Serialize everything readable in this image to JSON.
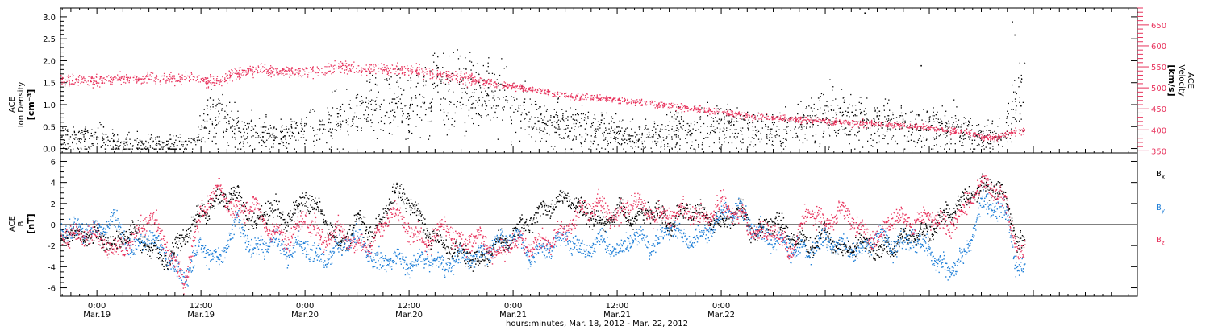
{
  "chart_data": [
    {
      "type": "scatter",
      "panel": "top",
      "ylabel_left": [
        "ACE",
        "Ion Density"
      ],
      "ylabel_left_unit": "[cm⁻³]",
      "ylabel_right": [
        "ACE",
        "Velocity"
      ],
      "ylabel_right_unit": "[km/s]",
      "ylim_left": [
        -0.1,
        3.2
      ],
      "ylim_right": [
        345,
        690
      ],
      "yticks_left": [
        "0.0",
        "0.5",
        "1.0",
        "1.5",
        "2.0",
        "2.5",
        "3.0"
      ],
      "yticks_right": [
        "350",
        "400",
        "450",
        "500",
        "550",
        "600",
        "650"
      ],
      "series": [
        {
          "axis": "left",
          "color": "#000000",
          "keypoints": [
            [
              0.0,
              0.25
            ],
            [
              3.0,
              0.1
            ],
            [
              8.0,
              0.08
            ],
            [
              11.0,
              0.1
            ],
            [
              13.0,
              0.8
            ],
            [
              17.0,
              0.4
            ],
            [
              20.0,
              0.3
            ],
            [
              23.0,
              0.4
            ],
            [
              26.0,
              0.5
            ],
            [
              29.0,
              0.8
            ],
            [
              33.0,
              0.95
            ],
            [
              36.0,
              1.05
            ],
            [
              39.0,
              1.3
            ],
            [
              42.0,
              1.35
            ],
            [
              45.0,
              1.2
            ],
            [
              48.0,
              1.0
            ],
            [
              51.0,
              0.6
            ],
            [
              55.0,
              0.5
            ],
            [
              59.0,
              0.4
            ],
            [
              62.0,
              0.3
            ],
            [
              64.0,
              0.3
            ],
            [
              68.0,
              0.45
            ],
            [
              71.0,
              0.5
            ],
            [
              73.0,
              0.55
            ],
            [
              76.0,
              0.45
            ],
            [
              79.0,
              0.35
            ],
            [
              83.0,
              0.8
            ],
            [
              87.0,
              0.65
            ],
            [
              91.0,
              0.55
            ],
            [
              95.0,
              0.45
            ],
            [
              99.0,
              0.5
            ],
            [
              102.0,
              0.3
            ],
            [
              104.5,
              0.25
            ],
            [
              106.0,
              1.1
            ],
            [
              107.0,
              1.2
            ]
          ],
          "outliers": [
            [
              88.5,
              3.1
            ],
            [
              95.0,
              1.9
            ],
            [
              105.5,
              2.9
            ],
            [
              105.8,
              2.6
            ]
          ]
        },
        {
          "axis": "right",
          "color": "#e8325c",
          "keypoints": [
            [
              0.0,
              518
            ],
            [
              3.0,
              523
            ],
            [
              6.0,
              525
            ],
            [
              9.0,
              523
            ],
            [
              12.0,
              522
            ],
            [
              14.0,
              517
            ],
            [
              16.0,
              535
            ],
            [
              19.0,
              545
            ],
            [
              22.0,
              538
            ],
            [
              25.0,
              540
            ],
            [
              28.0,
              552
            ],
            [
              31.0,
              544
            ],
            [
              34.0,
              547
            ],
            [
              37.0,
              540
            ],
            [
              40.0,
              530
            ],
            [
              43.0,
              520
            ],
            [
              46.0,
              510
            ],
            [
              49.0,
              500
            ],
            [
              52.0,
              490
            ],
            [
              55.0,
              480
            ],
            [
              58.0,
              476
            ],
            [
              61.0,
              470
            ],
            [
              64.0,
              463
            ],
            [
              67.0,
              455
            ],
            [
              70.0,
              448
            ],
            [
              73.0,
              440
            ],
            [
              76.0,
              433
            ],
            [
              79.0,
              428
            ],
            [
              82.0,
              425
            ],
            [
              85.0,
              420
            ],
            [
              88.0,
              416
            ],
            [
              91.0,
              414
            ],
            [
              94.0,
              410
            ],
            [
              97.0,
              403
            ],
            [
              100.0,
              395
            ],
            [
              103.0,
              380
            ],
            [
              105.5,
              395
            ],
            [
              107.0,
              398
            ]
          ],
          "outliers": []
        }
      ]
    },
    {
      "type": "scatter",
      "panel": "bottom",
      "ylabel_left": [
        "ACE",
        "B"
      ],
      "ylabel_left_unit": "[nT]",
      "ylim": [
        -6.8,
        6.8
      ],
      "yticks": [
        "-6",
        "-4",
        "-2",
        "0",
        "2",
        "4",
        "6"
      ],
      "zero_line": true,
      "legend_position": "right",
      "series": [
        {
          "name": "Bx",
          "color": "#000000",
          "keypoints": [
            [
              0.0,
              -1.0
            ],
            [
              2.0,
              -2.0
            ],
            [
              4.0,
              -0.5
            ],
            [
              6.0,
              -2.0
            ],
            [
              8.0,
              -3.5
            ],
            [
              10.0,
              -1.0
            ],
            [
              12.0,
              1.0
            ],
            [
              14.0,
              2.5
            ],
            [
              16.0,
              3.0
            ],
            [
              18.0,
              0.0
            ],
            [
              20.0,
              2.0
            ],
            [
              22.0,
              0.5
            ],
            [
              24.0,
              2.5
            ],
            [
              26.0,
              1.0
            ],
            [
              28.0,
              -2.0
            ],
            [
              30.0,
              0.5
            ],
            [
              32.0,
              -1.0
            ],
            [
              34.0,
              3.0
            ],
            [
              36.0,
              2.5
            ],
            [
              38.0,
              -0.5
            ],
            [
              40.0,
              -2.0
            ],
            [
              42.0,
              -2.5
            ],
            [
              44.0,
              -3.5
            ],
            [
              46.0,
              -2.0
            ],
            [
              48.0,
              -1.0
            ],
            [
              50.0,
              0.5
            ],
            [
              52.0,
              2.0
            ],
            [
              54.0,
              2.5
            ],
            [
              56.0,
              1.5
            ],
            [
              58.0,
              0.0
            ],
            [
              60.0,
              1.5
            ],
            [
              62.0,
              0.5
            ],
            [
              64.0,
              1.5
            ],
            [
              66.0,
              0.0
            ],
            [
              68.0,
              1.5
            ],
            [
              70.0,
              1.0
            ],
            [
              72.0,
              0.0
            ],
            [
              74.0,
              1.5
            ],
            [
              76.0,
              -1.0
            ],
            [
              78.0,
              0.5
            ],
            [
              80.0,
              -1.0
            ],
            [
              82.0,
              -2.0
            ],
            [
              84.0,
              -1.0
            ],
            [
              86.0,
              -2.5
            ],
            [
              88.0,
              -1.5
            ],
            [
              90.0,
              -2.5
            ],
            [
              92.0,
              -2.0
            ],
            [
              94.0,
              -1.0
            ],
            [
              96.0,
              -0.5
            ],
            [
              98.0,
              1.0
            ],
            [
              100.0,
              2.5
            ],
            [
              102.0,
              3.5
            ],
            [
              104.0,
              3.5
            ],
            [
              105.0,
              2.0
            ],
            [
              106.0,
              -1.5
            ],
            [
              107.0,
              -2.0
            ]
          ]
        },
        {
          "name": "By",
          "color": "#1f7fd8",
          "keypoints": [
            [
              0.0,
              -0.5
            ],
            [
              2.0,
              0.5
            ],
            [
              4.0,
              -2.5
            ],
            [
              6.0,
              -1.0
            ],
            [
              8.0,
              -3.0
            ],
            [
              10.0,
              -5.0
            ],
            [
              12.0,
              -2.0
            ],
            [
              14.0,
              -3.5
            ],
            [
              16.0,
              0.5
            ],
            [
              18.0,
              -2.5
            ],
            [
              20.0,
              -1.5
            ],
            [
              22.0,
              -2.5
            ],
            [
              24.0,
              -2.0
            ],
            [
              26.0,
              -3.5
            ],
            [
              28.0,
              -2.0
            ],
            [
              30.0,
              -1.0
            ],
            [
              32.0,
              -3.5
            ],
            [
              34.0,
              -3.0
            ],
            [
              36.0,
              -4.0
            ],
            [
              38.0,
              -3.0
            ],
            [
              40.0,
              -4.0
            ],
            [
              42.0,
              -3.0
            ],
            [
              44.0,
              -3.0
            ],
            [
              46.0,
              -2.0
            ],
            [
              48.0,
              -1.0
            ],
            [
              50.0,
              -3.0
            ],
            [
              52.0,
              -2.0
            ],
            [
              54.0,
              -1.0
            ],
            [
              56.0,
              -2.5
            ],
            [
              58.0,
              -1.5
            ],
            [
              60.0,
              -2.5
            ],
            [
              62.0,
              -1.0
            ],
            [
              64.0,
              -2.0
            ],
            [
              66.0,
              0.0
            ],
            [
              68.0,
              -1.5
            ],
            [
              70.0,
              -1.0
            ],
            [
              72.0,
              1.0
            ],
            [
              74.0,
              1.5
            ],
            [
              76.0,
              -0.5
            ],
            [
              78.0,
              -1.5
            ],
            [
              80.0,
              -2.0
            ],
            [
              82.0,
              -2.5
            ],
            [
              84.0,
              -1.5
            ],
            [
              86.0,
              -2.0
            ],
            [
              88.0,
              -2.5
            ],
            [
              90.0,
              -1.0
            ],
            [
              92.0,
              -2.0
            ],
            [
              94.0,
              -1.0
            ],
            [
              96.0,
              -2.5
            ],
            [
              98.0,
              -4.5
            ],
            [
              100.0,
              -3.0
            ],
            [
              102.0,
              2.0
            ],
            [
              104.0,
              1.5
            ],
            [
              105.0,
              0.5
            ],
            [
              106.0,
              -4.0
            ],
            [
              107.0,
              -4.0
            ]
          ]
        },
        {
          "name": "Bz",
          "color": "#e8325c",
          "keypoints": [
            [
              0.0,
              -1.0
            ],
            [
              2.0,
              -2.5
            ],
            [
              4.0,
              -1.5
            ],
            [
              6.0,
              1.0
            ],
            [
              8.0,
              -2.0
            ],
            [
              10.0,
              -5.5
            ],
            [
              12.0,
              1.5
            ],
            [
              14.0,
              3.5
            ],
            [
              16.0,
              1.0
            ],
            [
              18.0,
              2.0
            ],
            [
              20.0,
              -0.5
            ],
            [
              22.0,
              -1.5
            ],
            [
              24.0,
              1.0
            ],
            [
              26.0,
              -1.5
            ],
            [
              28.0,
              -0.5
            ],
            [
              30.0,
              -2.0
            ],
            [
              32.0,
              -1.5
            ],
            [
              34.0,
              1.5
            ],
            [
              36.0,
              -0.5
            ],
            [
              38.0,
              -2.0
            ],
            [
              40.0,
              0.0
            ],
            [
              42.0,
              -2.0
            ],
            [
              44.0,
              -1.0
            ],
            [
              46.0,
              -3.0
            ],
            [
              48.0,
              -1.5
            ],
            [
              50.0,
              -2.0
            ],
            [
              52.0,
              -1.5
            ],
            [
              54.0,
              -0.5
            ],
            [
              56.0,
              1.5
            ],
            [
              58.0,
              2.0
            ],
            [
              60.0,
              0.5
            ],
            [
              62.0,
              2.5
            ],
            [
              64.0,
              1.0
            ],
            [
              66.0,
              1.0
            ],
            [
              68.0,
              1.5
            ],
            [
              70.0,
              0.5
            ],
            [
              72.0,
              2.0
            ],
            [
              74.0,
              1.0
            ],
            [
              76.0,
              -1.0
            ],
            [
              78.0,
              -0.5
            ],
            [
              80.0,
              -2.5
            ],
            [
              82.0,
              1.5
            ],
            [
              84.0,
              0.0
            ],
            [
              86.0,
              1.5
            ],
            [
              88.0,
              -0.5
            ],
            [
              90.0,
              -1.5
            ],
            [
              92.0,
              1.0
            ],
            [
              94.0,
              0.0
            ],
            [
              96.0,
              1.0
            ],
            [
              98.0,
              -0.5
            ],
            [
              100.0,
              1.5
            ],
            [
              102.0,
              4.0
            ],
            [
              104.0,
              3.0
            ],
            [
              105.0,
              1.5
            ],
            [
              106.0,
              -2.0
            ],
            [
              107.0,
              -3.0
            ]
          ]
        }
      ]
    }
  ],
  "time_axis": {
    "xlim_hours": [
      -4.2,
      120.0
    ],
    "data_end_hours": 107.0,
    "ticks": [
      {
        "hours": 0,
        "time": "0:00",
        "date": "Mar.19"
      },
      {
        "hours": 12,
        "time": "12:00",
        "date": "Mar.19"
      },
      {
        "hours": 24,
        "time": "0:00",
        "date": "Mar.20"
      },
      {
        "hours": 36,
        "time": "12:00",
        "date": "Mar.20"
      },
      {
        "hours": 48,
        "time": "0:00",
        "date": "Mar.21"
      },
      {
        "hours": 60,
        "time": "12:00",
        "date": "Mar.21"
      },
      {
        "hours": 72,
        "time": "0:00",
        "date": "Mar.22"
      }
    ],
    "xlabel": "hours:minutes, Mar. 18, 2012 - Mar. 22, 2012"
  },
  "legend": {
    "items": [
      {
        "base": "B",
        "sub": "x",
        "color": "#000000"
      },
      {
        "base": "B",
        "sub": "y",
        "color": "#1f7fd8"
      },
      {
        "base": "B",
        "sub": "z",
        "color": "#e8325c"
      }
    ]
  },
  "colors": {
    "axis": "#000000",
    "velocity": "#e8325c",
    "background": "#ffffff"
  }
}
